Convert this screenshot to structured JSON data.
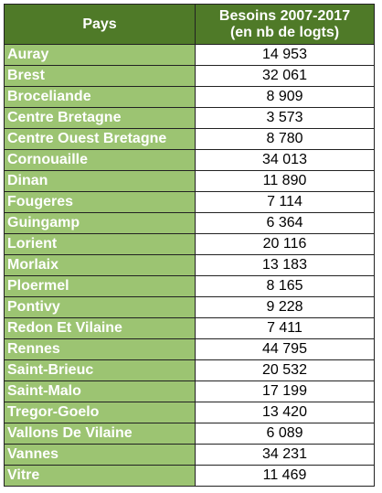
{
  "table": {
    "headers": {
      "pays": "Pays",
      "besoins_line1": "Besoins 2007-2017",
      "besoins_line2": "(en nb de logts)"
    },
    "rows": [
      {
        "pays": "Auray",
        "besoins": "14 953"
      },
      {
        "pays": "Brest",
        "besoins": "32 061"
      },
      {
        "pays": "Broceliande",
        "besoins": "8 909"
      },
      {
        "pays": "Centre Bretagne",
        "besoins": "3 573"
      },
      {
        "pays": "Centre Ouest Bretagne",
        "besoins": "8 780"
      },
      {
        "pays": "Cornouaille",
        "besoins": "34 013"
      },
      {
        "pays": "Dinan",
        "besoins": "11 890"
      },
      {
        "pays": "Fougeres",
        "besoins": "7 114"
      },
      {
        "pays": "Guingamp",
        "besoins": "6 364"
      },
      {
        "pays": "Lorient",
        "besoins": "20 116"
      },
      {
        "pays": "Morlaix",
        "besoins": "13 183"
      },
      {
        "pays": "Ploermel",
        "besoins": "8 165"
      },
      {
        "pays": "Pontivy",
        "besoins": "9 228"
      },
      {
        "pays": "Redon Et Vilaine",
        "besoins": "7 411"
      },
      {
        "pays": "Rennes",
        "besoins": "44 795"
      },
      {
        "pays": "Saint-Brieuc",
        "besoins": "20 532"
      },
      {
        "pays": "Saint-Malo",
        "besoins": "17 199"
      },
      {
        "pays": "Tregor-Goelo",
        "besoins": "13 420"
      },
      {
        "pays": "Vallons De Vilaine",
        "besoins": "6 089"
      },
      {
        "pays": "Vannes",
        "besoins": "34 231"
      },
      {
        "pays": "Vitre",
        "besoins": "11 469"
      }
    ],
    "colors": {
      "header_bg": "#4f7a28",
      "name_cell_bg": "#9cc472",
      "value_cell_bg": "#ffffff"
    }
  }
}
